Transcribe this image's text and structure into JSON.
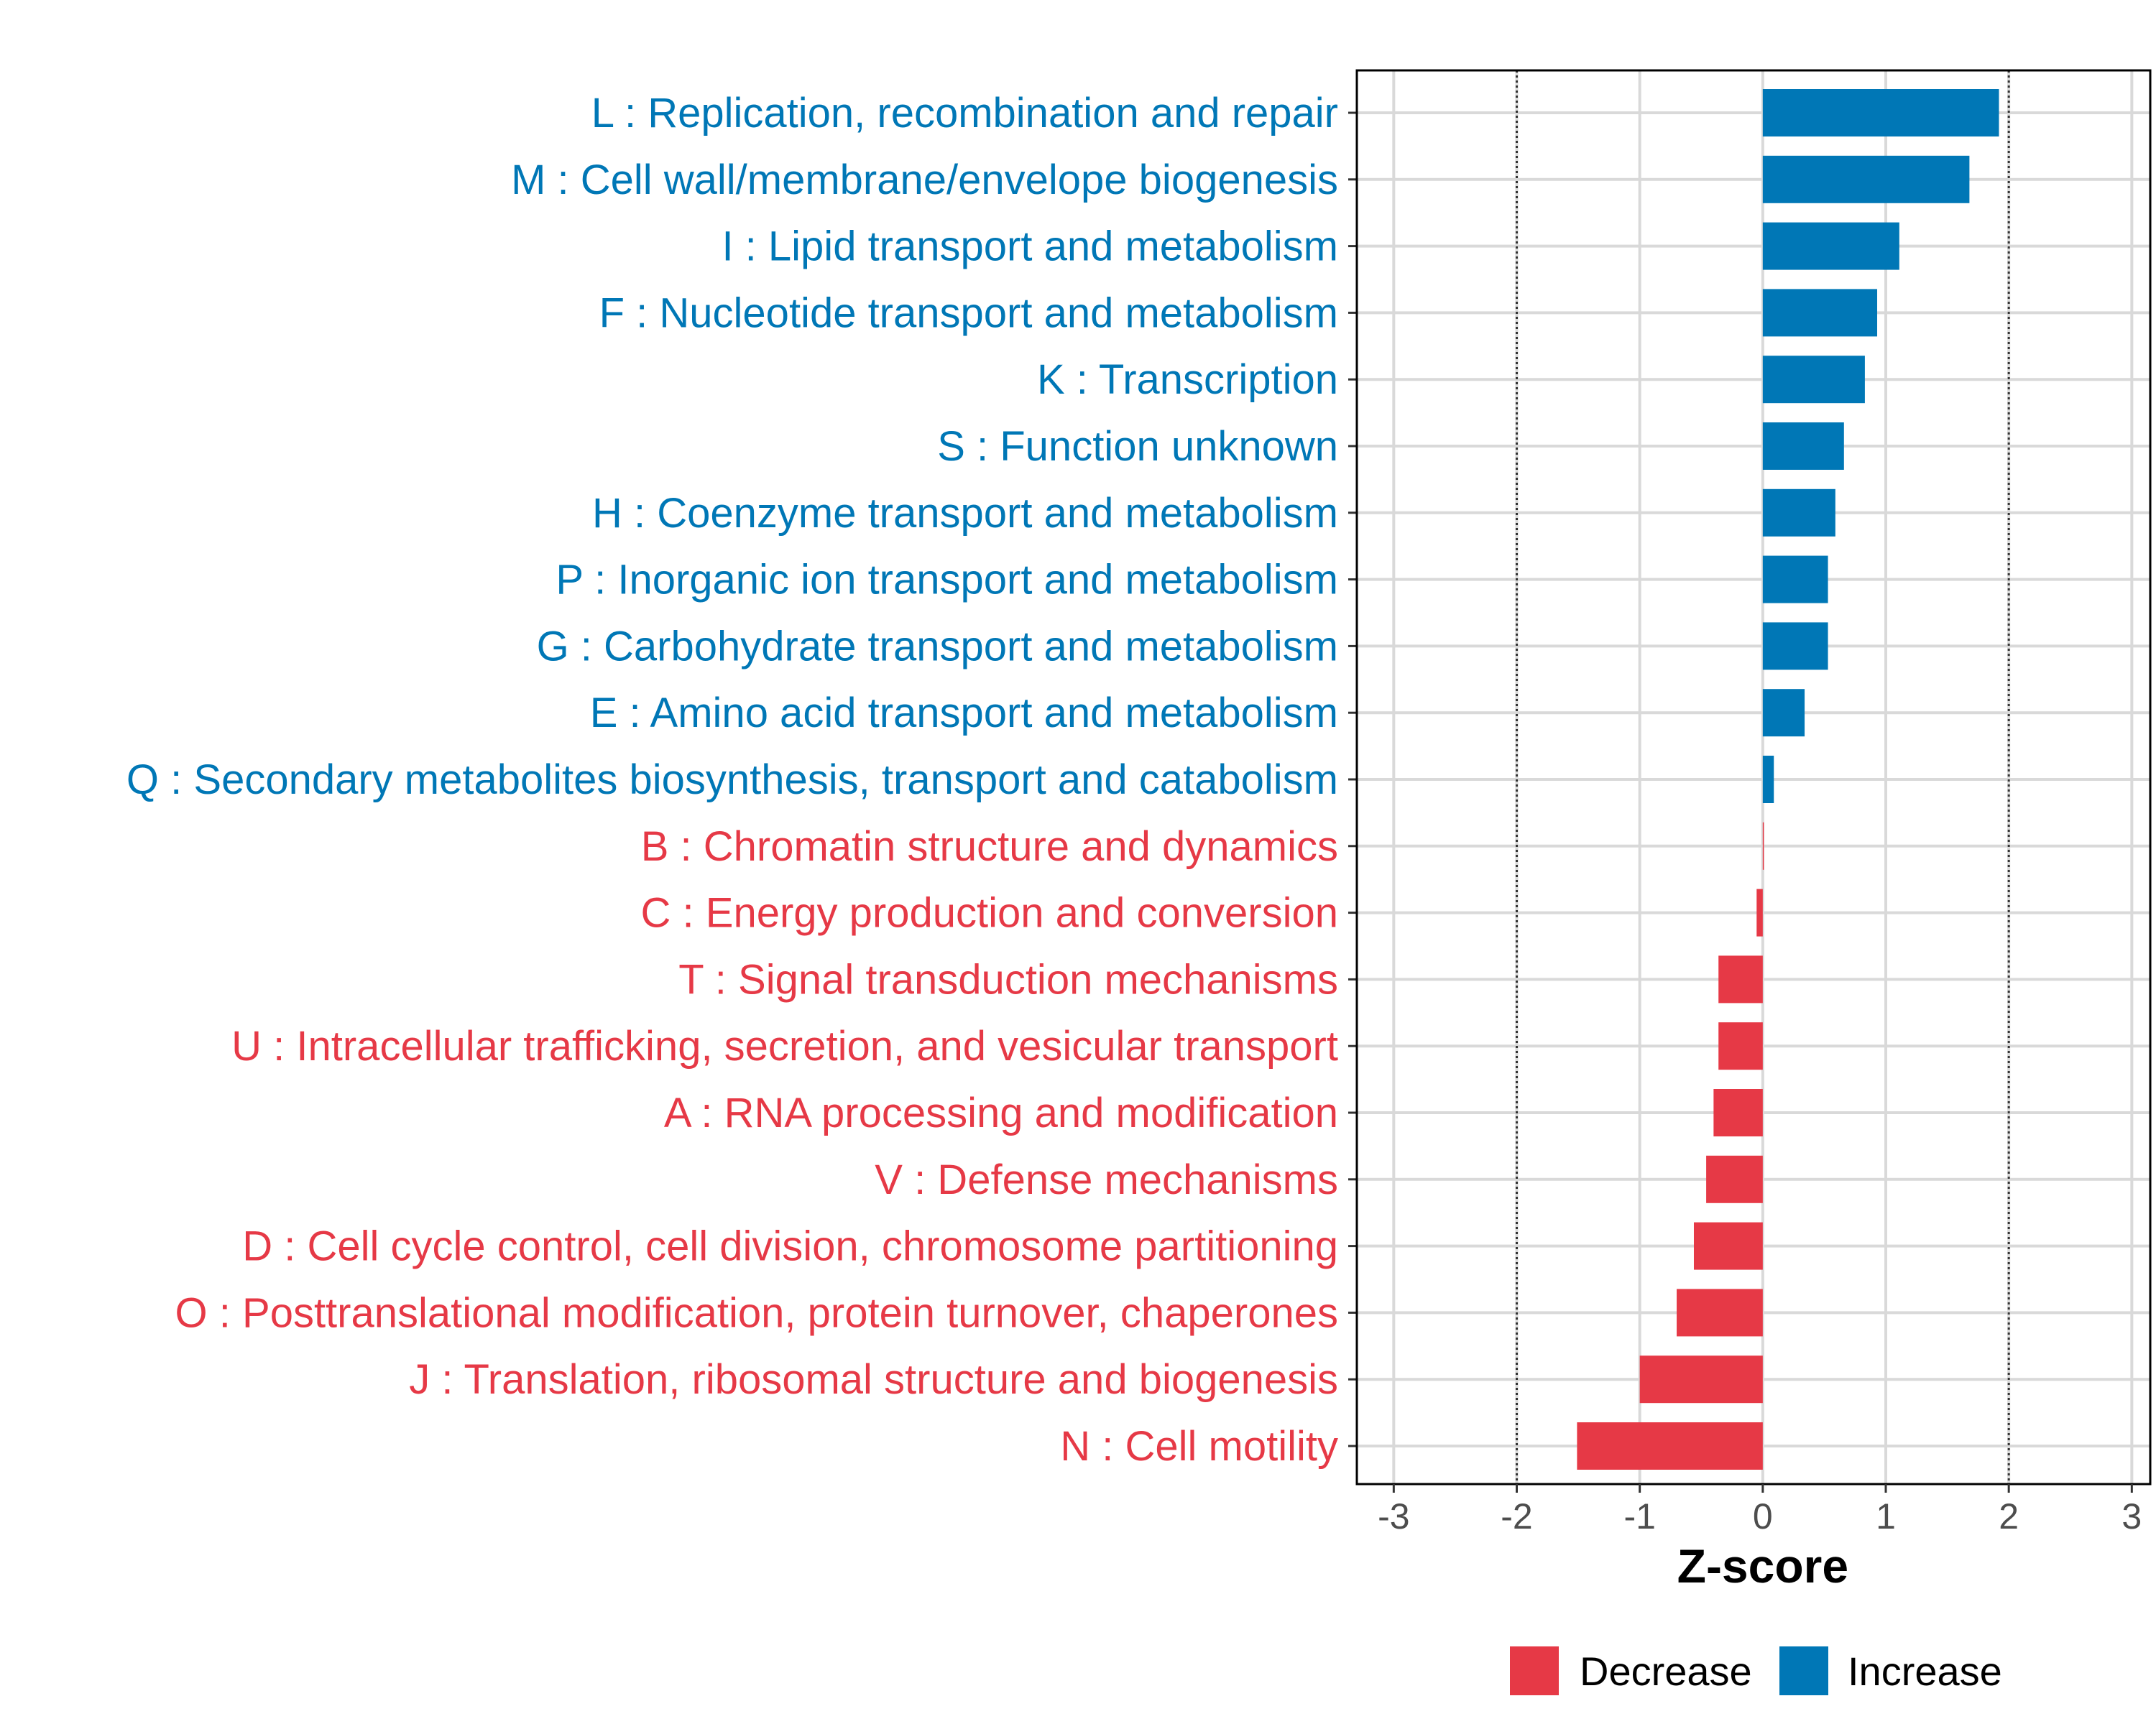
{
  "chart_data": {
    "type": "bar",
    "orientation": "horizontal",
    "xlabel": "Z-score",
    "ylabel": "",
    "xlim": [
      -3.3,
      3.15
    ],
    "xticks": [
      -3,
      -2,
      -1,
      0,
      1,
      2,
      3
    ],
    "reference_lines": [
      -2,
      2
    ],
    "grid": true,
    "legend_position": "bottom",
    "legend": [
      {
        "key": "decrease",
        "label": "Decrease",
        "color": "#e63946"
      },
      {
        "key": "increase",
        "label": "Increase",
        "color": "#0077b6"
      }
    ],
    "categories": [
      "L : Replication, recombination and repair",
      "M : Cell wall/membrane/envelope biogenesis",
      "I : Lipid transport and metabolism",
      "F : Nucleotide transport and metabolism",
      "K : Transcription",
      "S : Function unknown",
      "H : Coenzyme transport and metabolism",
      "P : Inorganic ion transport and metabolism",
      "G : Carbohydrate transport and metabolism",
      "E : Amino acid transport and metabolism",
      "Q : Secondary metabolites biosynthesis, transport and catabolism",
      "B : Chromatin structure and dynamics",
      "C : Energy production and conversion",
      "T : Signal transduction mechanisms",
      "U : Intracellular trafficking, secretion, and vesicular transport",
      "A : RNA processing and modification",
      "V : Defense mechanisms",
      "D : Cell cycle control, cell division, chromosome partitioning",
      "O : Posttranslational modification, protein turnover, chaperones",
      "J : Translation, ribosomal structure and biogenesis",
      "N : Cell motility"
    ],
    "values": [
      1.92,
      1.68,
      1.11,
      0.93,
      0.83,
      0.66,
      0.59,
      0.53,
      0.53,
      0.34,
      0.09,
      0.0,
      -0.05,
      -0.36,
      -0.36,
      -0.4,
      -0.46,
      -0.56,
      -0.7,
      -1.0,
      -1.51
    ],
    "groups": [
      "increase",
      "increase",
      "increase",
      "increase",
      "increase",
      "increase",
      "increase",
      "increase",
      "increase",
      "increase",
      "increase",
      "decrease",
      "decrease",
      "decrease",
      "decrease",
      "decrease",
      "decrease",
      "decrease",
      "decrease",
      "decrease",
      "decrease"
    ]
  }
}
